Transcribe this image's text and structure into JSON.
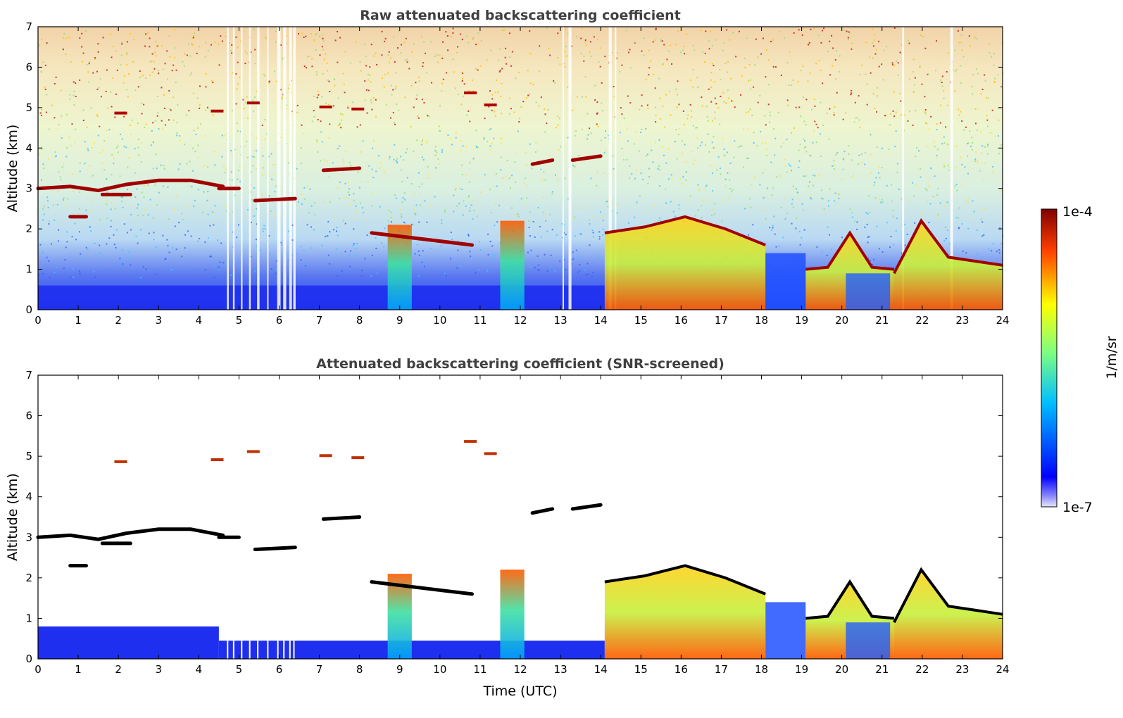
{
  "chart_data": [
    {
      "type": "heatmap",
      "title": "Raw attenuated backscattering coefficient",
      "ylabel": "Altitude (km)",
      "xlabel": "",
      "xlim": [
        0,
        24
      ],
      "ylim": [
        0,
        7
      ],
      "x_ticks": [
        "0",
        "1",
        "2",
        "3",
        "4",
        "5",
        "6",
        "7",
        "8",
        "9",
        "10",
        "11",
        "12",
        "13",
        "14",
        "15",
        "16",
        "17",
        "18",
        "19",
        "20",
        "21",
        "22",
        "23",
        "24"
      ],
      "y_ticks": [
        "0",
        "1",
        "2",
        "3",
        "4",
        "5",
        "6",
        "7"
      ],
      "color_scale": "log",
      "features": [
        {
          "kind": "cloud_layer",
          "x": [
            0,
            4.6
          ],
          "altitude_km": 3.0
        },
        {
          "kind": "cloud_layer",
          "x": [
            5.0,
            6.4
          ],
          "altitude_km": 2.75
        },
        {
          "kind": "cloud_layer",
          "x": [
            7.1,
            8.0
          ],
          "altitude_km": 3.5
        },
        {
          "kind": "aerosol_column",
          "x": [
            8.7,
            9.3
          ],
          "top_km": 2.1
        },
        {
          "kind": "aerosol_column",
          "x": [
            11.5,
            12.1
          ],
          "top_km": 2.0
        },
        {
          "kind": "boundary_layer",
          "x": [
            14.1,
            18.1
          ],
          "top_km": 2.0
        },
        {
          "kind": "boundary_layer",
          "x": [
            19.1,
            21.3
          ],
          "top_km": 1.05
        },
        {
          "kind": "boundary_layer",
          "x": [
            21.3,
            24.0
          ],
          "top_km": 1.5
        }
      ]
    },
    {
      "type": "heatmap",
      "title": "Attenuated backscattering coefficient (SNR-screened)",
      "ylabel": "Altitude (km)",
      "xlabel": "Time (UTC)",
      "xlim": [
        0,
        24
      ],
      "ylim": [
        0,
        7
      ],
      "x_ticks": [
        "0",
        "1",
        "2",
        "3",
        "4",
        "5",
        "6",
        "7",
        "8",
        "9",
        "10",
        "11",
        "12",
        "13",
        "14",
        "15",
        "16",
        "17",
        "18",
        "19",
        "20",
        "21",
        "22",
        "23",
        "24"
      ],
      "y_ticks": [
        "0",
        "1",
        "2",
        "3",
        "4",
        "5",
        "6",
        "7"
      ],
      "color_scale": "log"
    }
  ],
  "colorbar": {
    "label": "1/m/sr",
    "min_label": "1e-7",
    "max_label": "1e-4",
    "colormap": "jet",
    "colors": [
      "#e6e6f8",
      "#0000ff",
      "#00bfff",
      "#7fff7f",
      "#ffff00",
      "#ff4000",
      "#800000"
    ]
  }
}
